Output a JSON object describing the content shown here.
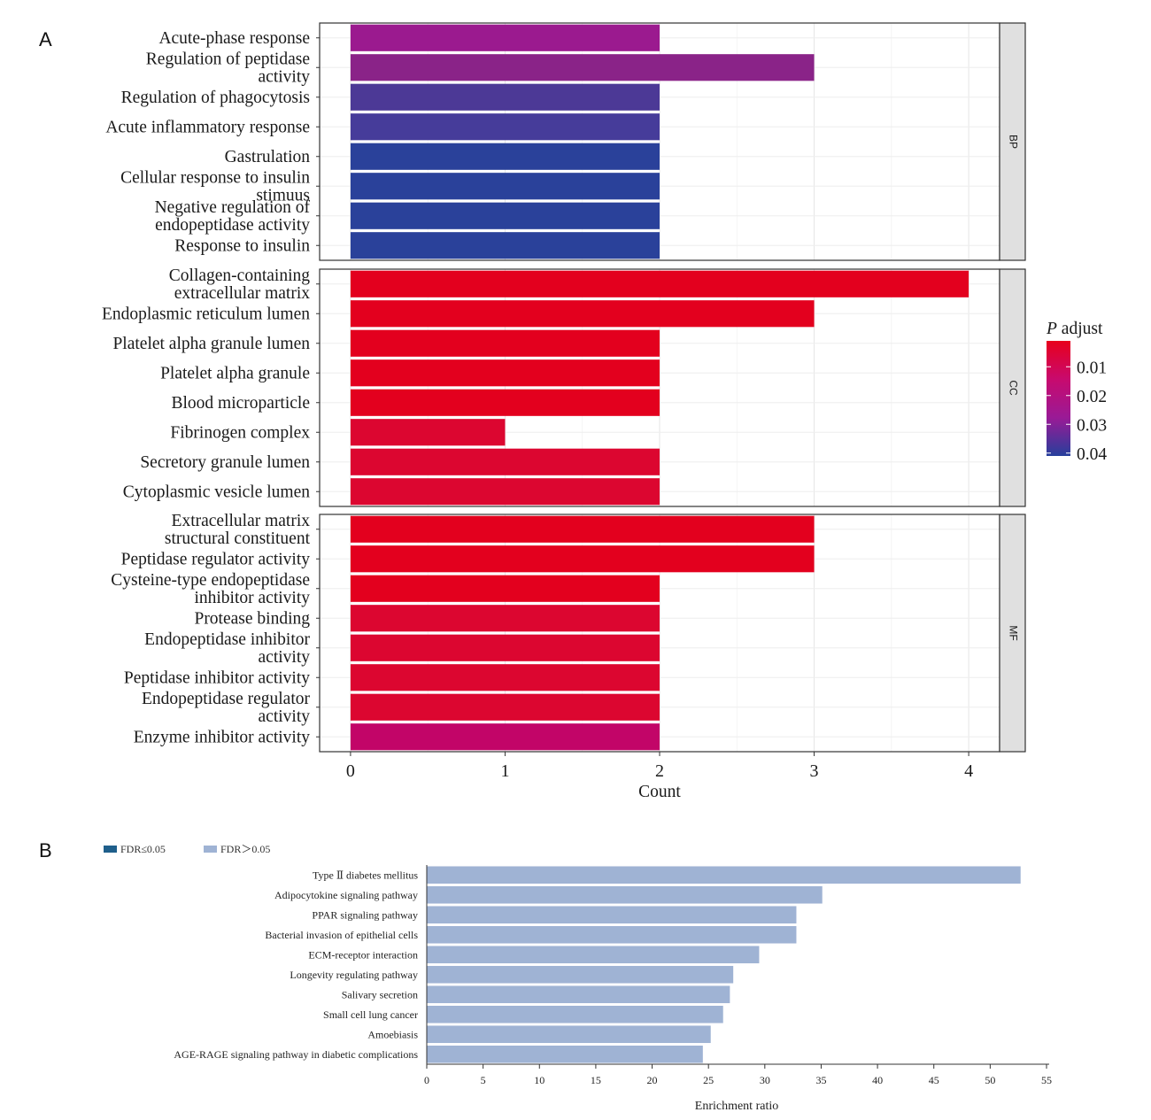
{
  "figure": {
    "panel_a_label": "A",
    "panel_b_label": "B"
  },
  "chart_data": [
    {
      "type": "bar",
      "orientation": "horizontal",
      "panel": "A",
      "xlabel": "Count",
      "xlim": [
        -0.2,
        4.2
      ],
      "xticks": [
        0,
        1,
        2,
        3,
        4
      ],
      "grid": true,
      "color_scale": {
        "title_italic": "P",
        "title_rest": " adjust",
        "ticks": [
          "0.01",
          "0.02",
          "0.03",
          "0.04"
        ],
        "tick_values": [
          0.01,
          0.02,
          0.03,
          0.04
        ],
        "range": [
          0.001,
          0.041
        ],
        "colors": [
          "#e8001c",
          "#c80a6e",
          "#9a1a96",
          "#263f9c"
        ],
        "placement": "right"
      },
      "facets": [
        {
          "name": "BP",
          "categories": [
            [
              "Acute-phase response"
            ],
            [
              "Regulation of peptidase",
              "activity"
            ],
            [
              "Regulation of phagocytosis"
            ],
            [
              "Acute inflammatory response"
            ],
            [
              "Gastrulation"
            ],
            [
              "Cellular response to insulin",
              "stimuus"
            ],
            [
              "Negative regulation of",
              "endopeptidase activity"
            ],
            [
              "Response to insulin"
            ]
          ],
          "values": [
            2,
            3,
            2,
            2,
            2,
            2,
            2,
            2
          ],
          "colors": [
            "#9b1a8f",
            "#8a2388",
            "#4c3996",
            "#463c9a",
            "#2a419a",
            "#2a419a",
            "#2a419a",
            "#2a419a"
          ]
        },
        {
          "name": "CC",
          "categories": [
            [
              "Collagen-containing",
              "extracellular matrix"
            ],
            [
              "Endoplasmic reticulum lumen"
            ],
            [
              "Platelet alpha granule lumen"
            ],
            [
              "Platelet alpha granule"
            ],
            [
              "Blood microparticle"
            ],
            [
              "Fibrinogen complex"
            ],
            [
              "Secretory granule lumen"
            ],
            [
              "Cytoplasmic vesicle lumen"
            ]
          ],
          "values": [
            4,
            3,
            2,
            2,
            2,
            1,
            2,
            2
          ],
          "colors": [
            "#e3001e",
            "#e3001e",
            "#e3001e",
            "#e3001e",
            "#e3001e",
            "#dc0630",
            "#dc0630",
            "#dc0630"
          ]
        },
        {
          "name": "MF",
          "categories": [
            [
              "Extracellular matrix",
              "structural constituent"
            ],
            [
              "Peptidase regulator activity"
            ],
            [
              "Cysteine-type endopeptidase",
              "inhibitor activity"
            ],
            [
              "Protease binding"
            ],
            [
              "Endopeptidase inhibitor",
              "activity"
            ],
            [
              "Peptidase inhibitor activity"
            ],
            [
              "Endopeptidase regulator",
              "activity"
            ],
            [
              "Enzyme inhibitor activity"
            ]
          ],
          "values": [
            3,
            3,
            2,
            2,
            2,
            2,
            2,
            2
          ],
          "colors": [
            "#e3001e",
            "#e3001e",
            "#e3001e",
            "#dc0630",
            "#dc0630",
            "#dc0630",
            "#dc0630",
            "#c20568"
          ]
        }
      ]
    },
    {
      "type": "bar",
      "orientation": "horizontal",
      "panel": "B",
      "xlabel": "Enrichment ratio",
      "xlim": [
        0,
        55
      ],
      "xticks": [
        0,
        5,
        10,
        15,
        20,
        25,
        30,
        35,
        40,
        45,
        50,
        55
      ],
      "grid": false,
      "legend": {
        "placement": "top-left",
        "entries": [
          {
            "label": "FDR≤0.05",
            "color": "#1f5f8b"
          },
          {
            "label": "FDR＞0.05",
            "color": "#9fb3d4"
          }
        ]
      },
      "categories": [
        "Type Ⅱ diabetes mellitus",
        "Adipocytokine signaling pathway",
        "PPAR signaling pathway",
        "Bacterial invasion of epithelial cells",
        "ECM-receptor interaction",
        "Longevity regulating pathway",
        "Salivary secretion",
        "Small cell lung cancer",
        "Amoebiasis",
        "AGE-RAGE signaling pathway in diabetic complications"
      ],
      "values": [
        52.7,
        35.1,
        32.8,
        32.8,
        29.5,
        27.2,
        26.9,
        26.3,
        25.2,
        24.5
      ],
      "color": "#9fb3d4"
    }
  ]
}
